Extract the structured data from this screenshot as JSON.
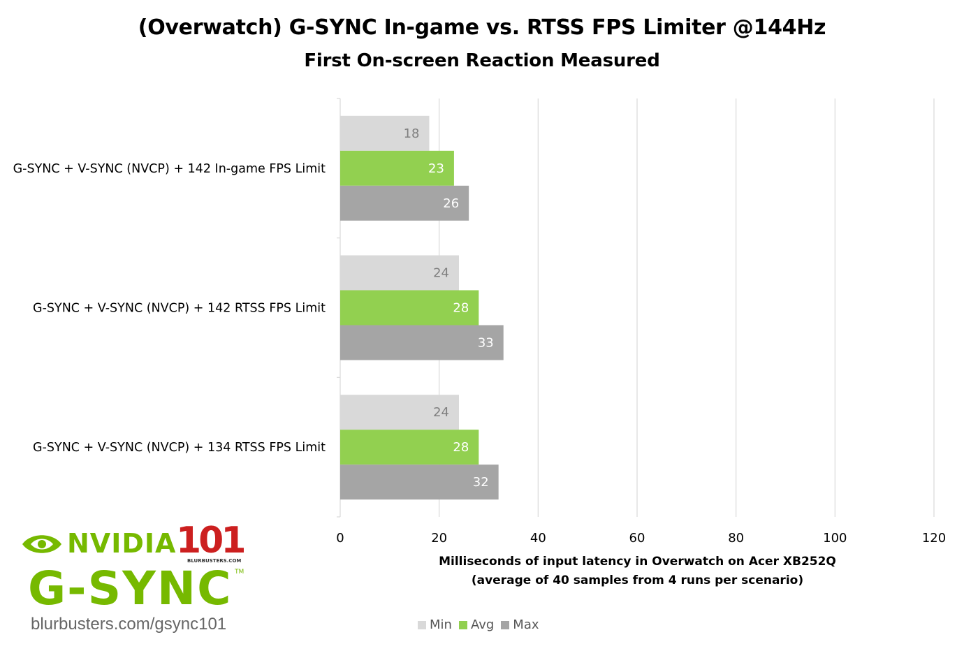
{
  "chart_data": {
    "type": "bar",
    "orientation": "horizontal",
    "title": "(Overwatch) G-SYNC In-game vs. RTSS FPS Limiter @144Hz",
    "subtitle": "First On-screen Reaction Measured",
    "categories": [
      "G-SYNC + V-SYNC (NVCP) + 142 In-game FPS Limit",
      "G-SYNC + V-SYNC (NVCP) + 142 RTSS FPS Limit",
      "G-SYNC + V-SYNC (NVCP) + 134 RTSS FPS Limit"
    ],
    "series": [
      {
        "name": "Min",
        "color": "#d9d9d9",
        "label_color": "#7f7f7f",
        "values": [
          18,
          24,
          24
        ]
      },
      {
        "name": "Avg",
        "color": "#92d050",
        "label_color": "#ffffff",
        "values": [
          23,
          28,
          28
        ]
      },
      {
        "name": "Max",
        "color": "#a5a5a5",
        "label_color": "#ffffff",
        "values": [
          26,
          33,
          32
        ]
      }
    ],
    "xlabel": "Milliseconds of input latency in Overwatch on Acer XB252Q",
    "xlabel_line2": "(average of 40 samples from 4 runs per scenario)",
    "ylabel": "",
    "xlim": [
      0,
      120
    ],
    "x_ticks": [
      "0",
      "20",
      "40",
      "60",
      "80",
      "100",
      "120"
    ],
    "grid": true,
    "legend": "bottom"
  },
  "logo": {
    "brand": "NVIDIA",
    "badge": "101",
    "badge_site": "BLURBUSTERS.COM",
    "product": "G-SYNC",
    "trademark": "TM",
    "url": "blurbusters.com/gsync101"
  }
}
